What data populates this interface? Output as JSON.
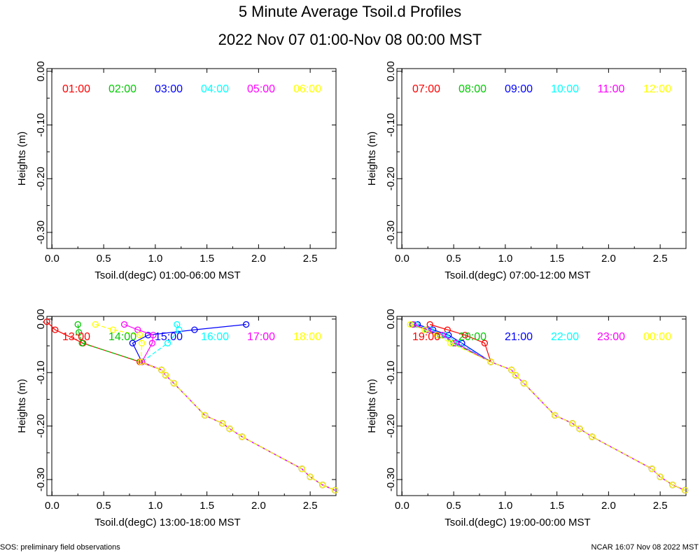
{
  "title": "5 Minute Average Tsoil.d Profiles",
  "subtitle": "2022 Nov 07 01:00-Nov 08 00:00 MST",
  "footer_left": "SOS: preliminary field observations",
  "footer_right": "NCAR 16:07 Nov 08 2022 MST",
  "colors": [
    "#ff0000",
    "#00c800",
    "#0000ff",
    "#00ffff",
    "#ff00ff",
    "#ffff00"
  ],
  "chart_data": [
    {
      "type": "line",
      "xlabel": "Tsoil.d(degC) 01:00-06:00 MST",
      "ylabel": "Heights (m)",
      "xlim": [
        -0.05,
        2.75
      ],
      "ylim": [
        -0.33,
        0.005
      ],
      "xticks": [
        "0.0",
        "0.5",
        "1.0",
        "1.5",
        "2.0",
        "2.5"
      ],
      "yticks": [
        "0.00",
        "-0.10",
        "-0.20",
        "-0.30"
      ],
      "legend": [
        "01:00",
        "02:00",
        "03:00",
        "04:00",
        "05:00",
        "06:00"
      ],
      "series": []
    },
    {
      "type": "line",
      "xlabel": "Tsoil.d(degC) 07:00-12:00 MST",
      "ylabel": "Heights (m)",
      "xlim": [
        -0.05,
        2.75
      ],
      "ylim": [
        -0.33,
        0.005
      ],
      "xticks": [
        "0.0",
        "0.5",
        "1.0",
        "1.5",
        "2.0",
        "2.5"
      ],
      "yticks": [
        "0.00",
        "-0.10",
        "-0.20",
        "-0.30"
      ],
      "legend": [
        "07:00",
        "08:00",
        "09:00",
        "10:00",
        "11:00",
        "12:00"
      ],
      "series": []
    },
    {
      "type": "line",
      "xlabel": "Tsoil.d(degC) 13:00-18:00 MST",
      "ylabel": "Heights (m)",
      "xlim": [
        -0.05,
        2.75
      ],
      "ylim": [
        -0.33,
        0.005
      ],
      "xticks": [
        "0.0",
        "0.5",
        "1.0",
        "1.5",
        "2.0",
        "2.5"
      ],
      "yticks": [
        "0.00",
        "-0.10",
        "-0.20",
        "-0.30"
      ],
      "legend": [
        "13:00",
        "14:00",
        "15:00",
        "16:00",
        "17:00",
        "18:00"
      ],
      "series": [
        {
          "name": "13:00",
          "x": [
            -0.05,
            0.03,
            0.3,
            0.85,
            1.06,
            1.1,
            1.18,
            1.48,
            1.65,
            1.72,
            1.84,
            2.42,
            2.5,
            2.62,
            2.74
          ],
          "y": [
            -0.005,
            -0.02,
            -0.045,
            -0.08,
            -0.095,
            -0.105,
            -0.12,
            -0.18,
            -0.195,
            -0.205,
            -0.22,
            -0.28,
            -0.295,
            -0.31,
            -0.32
          ]
        },
        {
          "name": "14:00",
          "x": [
            0.25,
            0.26,
            0.29,
            0.86,
            1.06,
            1.1,
            1.18,
            1.48,
            1.65,
            1.72,
            1.84,
            2.42,
            2.5,
            2.62,
            2.74
          ],
          "y": [
            -0.01,
            -0.025,
            -0.045,
            -0.08,
            -0.095,
            -0.105,
            -0.12,
            -0.18,
            -0.195,
            -0.205,
            -0.22,
            -0.28,
            -0.295,
            -0.31,
            -0.32
          ]
        },
        {
          "name": "15:00",
          "x": [
            1.88,
            1.38,
            0.93,
            0.78,
            0.87,
            1.06,
            1.1,
            1.18,
            1.48,
            1.65,
            1.72,
            1.84,
            2.42,
            2.5,
            2.62,
            2.74
          ],
          "y": [
            -0.01,
            -0.02,
            -0.03,
            -0.045,
            -0.08,
            -0.095,
            -0.105,
            -0.12,
            -0.18,
            -0.195,
            -0.205,
            -0.22,
            -0.28,
            -0.295,
            -0.31,
            -0.32
          ]
        },
        {
          "name": "16:00",
          "x": [
            1.21,
            1.23,
            1.12,
            0.87,
            1.06,
            1.1,
            1.18,
            1.48,
            1.65,
            1.72,
            1.84,
            2.42,
            2.5,
            2.62,
            2.74
          ],
          "y": [
            -0.01,
            -0.02,
            -0.045,
            -0.08,
            -0.095,
            -0.105,
            -0.12,
            -0.18,
            -0.195,
            -0.205,
            -0.22,
            -0.28,
            -0.295,
            -0.31,
            -0.32
          ]
        },
        {
          "name": "17:00",
          "x": [
            0.7,
            0.83,
            0.98,
            0.97,
            0.87,
            1.06,
            1.1,
            1.18,
            1.48,
            1.65,
            1.72,
            1.84,
            2.42,
            2.5,
            2.62,
            2.74
          ],
          "y": [
            -0.01,
            -0.02,
            -0.03,
            -0.045,
            -0.08,
            -0.095,
            -0.105,
            -0.12,
            -0.18,
            -0.195,
            -0.205,
            -0.22,
            -0.28,
            -0.295,
            -0.31,
            -0.32
          ]
        },
        {
          "name": "18:00",
          "x": [
            0.42,
            0.59,
            0.85,
            0.87,
            0.86,
            1.06,
            1.1,
            1.18,
            1.48,
            1.65,
            1.72,
            1.84,
            2.42,
            2.5,
            2.62,
            2.74
          ],
          "y": [
            -0.01,
            -0.02,
            -0.03,
            -0.045,
            -0.08,
            -0.095,
            -0.105,
            -0.12,
            -0.18,
            -0.195,
            -0.205,
            -0.22,
            -0.28,
            -0.295,
            -0.31,
            -0.32
          ]
        }
      ]
    },
    {
      "type": "line",
      "xlabel": "Tsoil.d(degC) 19:00-00:00 MST",
      "ylabel": "Heights (m)",
      "xlim": [
        -0.05,
        2.75
      ],
      "ylim": [
        -0.33,
        0.005
      ],
      "xticks": [
        "0.0",
        "0.5",
        "1.0",
        "1.5",
        "2.0",
        "2.5"
      ],
      "yticks": [
        "0.00",
        "-0.10",
        "-0.20",
        "-0.30"
      ],
      "legend": [
        "19:00",
        "20:00",
        "21:00",
        "22:00",
        "23:00",
        "00:00"
      ],
      "series": [
        {
          "name": "19:00",
          "x": [
            0.27,
            0.44,
            0.61,
            0.8,
            0.86,
            1.06,
            1.1,
            1.18,
            1.48,
            1.65,
            1.72,
            1.84,
            2.42,
            2.5,
            2.62,
            2.74
          ],
          "y": [
            -0.01,
            -0.02,
            -0.03,
            -0.045,
            -0.08,
            -0.095,
            -0.105,
            -0.12,
            -0.18,
            -0.195,
            -0.205,
            -0.22,
            -0.28,
            -0.295,
            -0.31,
            -0.32
          ]
        },
        {
          "name": "20:00",
          "x": [
            0.1,
            0.24,
            0.37,
            0.5,
            0.86,
            1.06,
            1.1,
            1.18,
            1.48,
            1.65,
            1.72,
            1.84,
            2.42,
            2.5,
            2.62,
            2.74
          ],
          "y": [
            -0.01,
            -0.02,
            -0.03,
            -0.045,
            -0.08,
            -0.095,
            -0.105,
            -0.12,
            -0.18,
            -0.195,
            -0.205,
            -0.22,
            -0.28,
            -0.295,
            -0.31,
            -0.32
          ]
        },
        {
          "name": "21:00",
          "x": [
            0.15,
            0.3,
            0.45,
            0.58,
            0.86,
            1.06,
            1.1,
            1.18,
            1.48,
            1.65,
            1.72,
            1.84,
            2.42,
            2.5,
            2.62,
            2.74
          ],
          "y": [
            -0.01,
            -0.02,
            -0.03,
            -0.045,
            -0.08,
            -0.095,
            -0.105,
            -0.12,
            -0.18,
            -0.195,
            -0.205,
            -0.22,
            -0.28,
            -0.295,
            -0.31,
            -0.32
          ]
        },
        {
          "name": "22:00",
          "x": [
            0.13,
            0.27,
            0.42,
            0.55,
            0.86,
            1.06,
            1.1,
            1.18,
            1.48,
            1.65,
            1.72,
            1.84,
            2.42,
            2.5,
            2.62,
            2.74
          ],
          "y": [
            -0.01,
            -0.02,
            -0.03,
            -0.045,
            -0.08,
            -0.095,
            -0.105,
            -0.12,
            -0.18,
            -0.195,
            -0.205,
            -0.22,
            -0.28,
            -0.295,
            -0.31,
            -0.32
          ]
        },
        {
          "name": "23:00",
          "x": [
            0.11,
            0.25,
            0.39,
            0.52,
            0.86,
            1.06,
            1.1,
            1.18,
            1.48,
            1.65,
            1.72,
            1.84,
            2.42,
            2.5,
            2.62,
            2.74
          ],
          "y": [
            -0.01,
            -0.02,
            -0.03,
            -0.045,
            -0.08,
            -0.095,
            -0.105,
            -0.12,
            -0.18,
            -0.195,
            -0.205,
            -0.22,
            -0.28,
            -0.295,
            -0.31,
            -0.32
          ]
        },
        {
          "name": "00:00",
          "x": [
            0.08,
            0.22,
            0.34,
            0.47,
            0.86,
            1.06,
            1.1,
            1.18,
            1.48,
            1.65,
            1.72,
            1.84,
            2.42,
            2.5,
            2.62,
            2.74
          ],
          "y": [
            -0.01,
            -0.02,
            -0.03,
            -0.045,
            -0.08,
            -0.095,
            -0.105,
            -0.12,
            -0.18,
            -0.195,
            -0.205,
            -0.22,
            -0.28,
            -0.295,
            -0.31,
            -0.32
          ]
        }
      ]
    }
  ]
}
